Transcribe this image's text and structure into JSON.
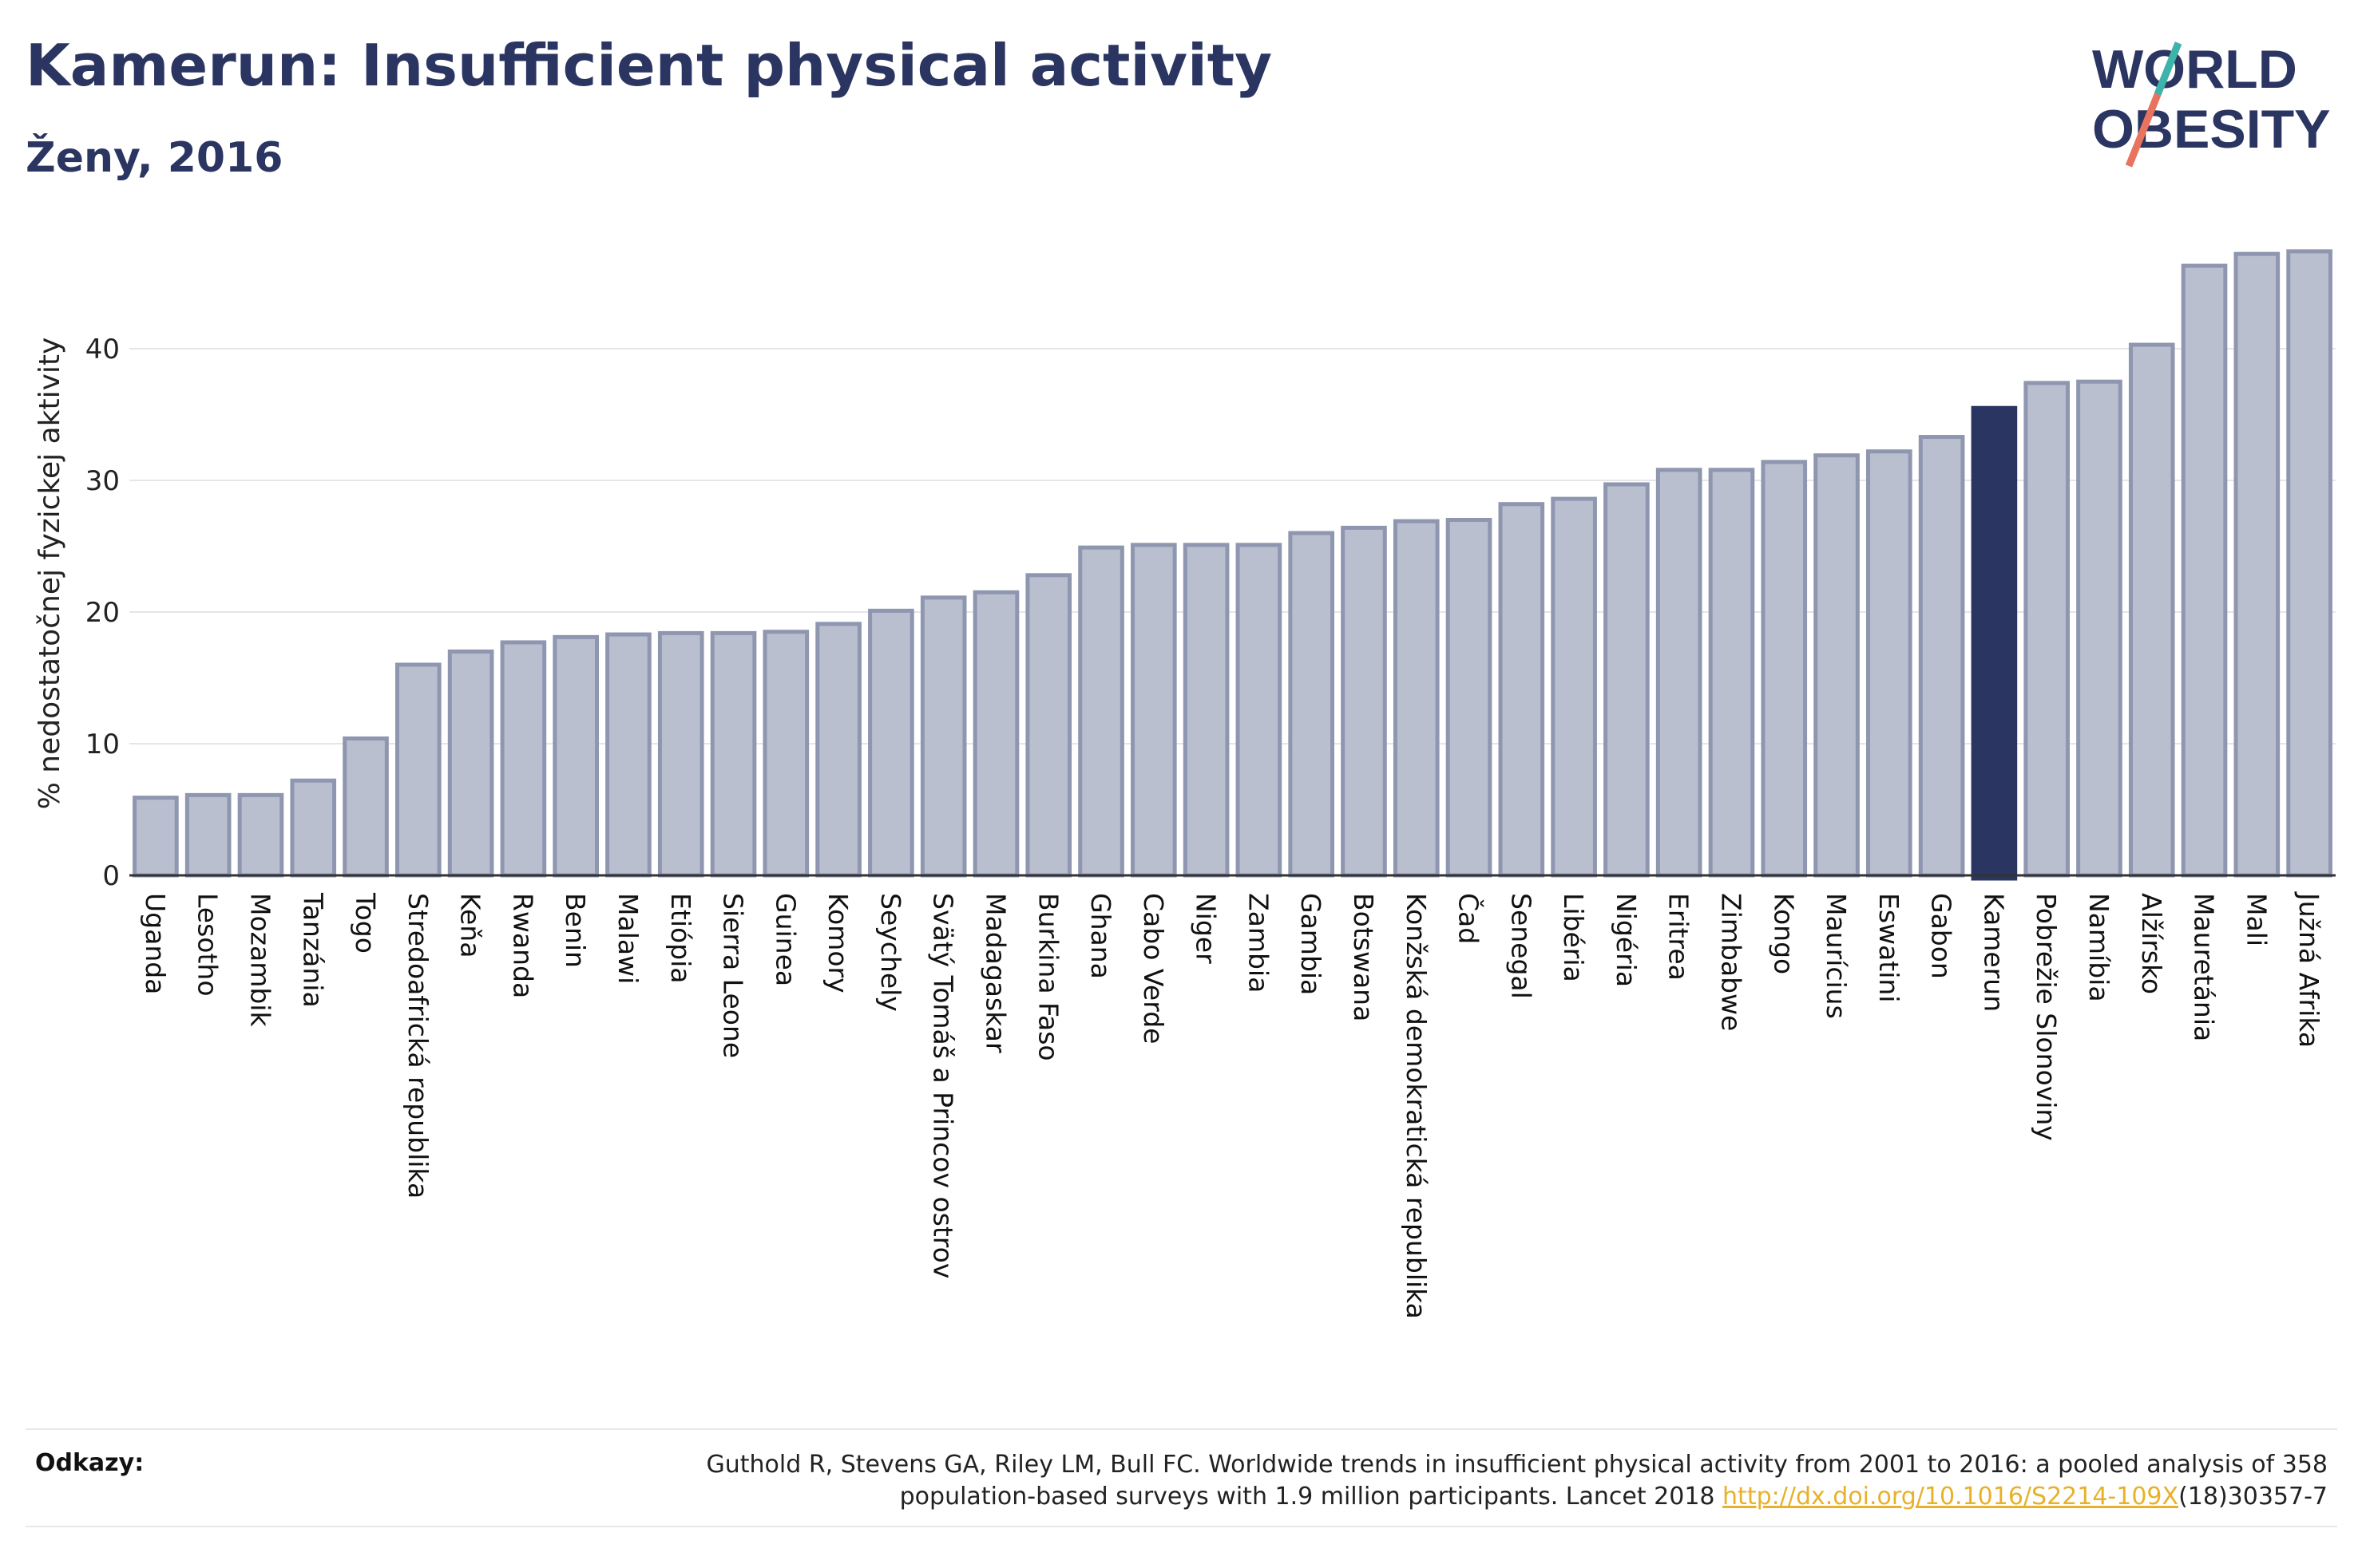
{
  "header": {
    "title": "Kamerun: Insufficient physical activity",
    "subtitle": "Ženy, 2016"
  },
  "logo": {
    "line1": "WORLD",
    "line2": "OBESITY"
  },
  "colors": {
    "default_bar": "#b9bfce",
    "default_bar_edge": "#8e96b0",
    "highlight_bar": "#2b3561",
    "text": "#2b3561",
    "link": "#e8b12a"
  },
  "chart_data": {
    "type": "bar",
    "ylabel": "% nedostatočnej fyzickej aktivity",
    "xlabel": "",
    "ylim": [
      0,
      48
    ],
    "yticks": [
      0,
      10,
      20,
      30,
      40
    ],
    "grid": true,
    "highlight": "Kamerun",
    "categories": [
      "Uganda",
      "Lesotho",
      "Mozambik",
      "Tanzánia",
      "Togo",
      "Stredoafrická republika",
      "Keňa",
      "Rwanda",
      "Benin",
      "Malawi",
      "Etiópia",
      "Sierra Leone",
      "Guinea",
      "Komory",
      "Seychely",
      "Svätý Tomáš a Princov ostrov",
      "Madagaskar",
      "Burkina Faso",
      "Ghana",
      "Cabo Verde",
      "Niger",
      "Zambia",
      "Gambia",
      "Botswana",
      "Konžská demokratická republika",
      "Čad",
      "Senegal",
      "Libéria",
      "Nigéria",
      "Eritrea",
      "Zimbabwe",
      "Kongo",
      "Maurícius",
      "Eswatini",
      "Gabon",
      "Kamerun",
      "Pobrežie Slonoviny",
      "Namíbia",
      "Alžírsko",
      "Mauretánia",
      "Mali",
      "Južná Afrika"
    ],
    "values": [
      5.9,
      6.1,
      6.1,
      7.2,
      10.4,
      16.0,
      17.0,
      17.7,
      18.1,
      18.3,
      18.4,
      18.4,
      18.5,
      19.1,
      20.1,
      21.1,
      21.5,
      22.8,
      24.9,
      25.1,
      25.1,
      25.1,
      26.0,
      26.4,
      26.9,
      27.0,
      28.2,
      28.6,
      29.7,
      30.8,
      30.8,
      31.4,
      31.9,
      32.2,
      33.3,
      35.5,
      37.4,
      37.5,
      40.3,
      46.3,
      47.2,
      47.4
    ]
  },
  "references": {
    "label": "Odkazy:",
    "text_line1": "Guthold R, Stevens GA, Riley LM, Bull FC. Worldwide trends in insufficient physical activity from 2001 to 2016: a pooled analysis of 358",
    "text_line2_before": "population-based surveys with 1.9 million participants. Lancet 2018 ",
    "link": "http://dx.doi.org/10.1016/S2214-109X",
    "text_line2_after": "(18)30357-7"
  }
}
